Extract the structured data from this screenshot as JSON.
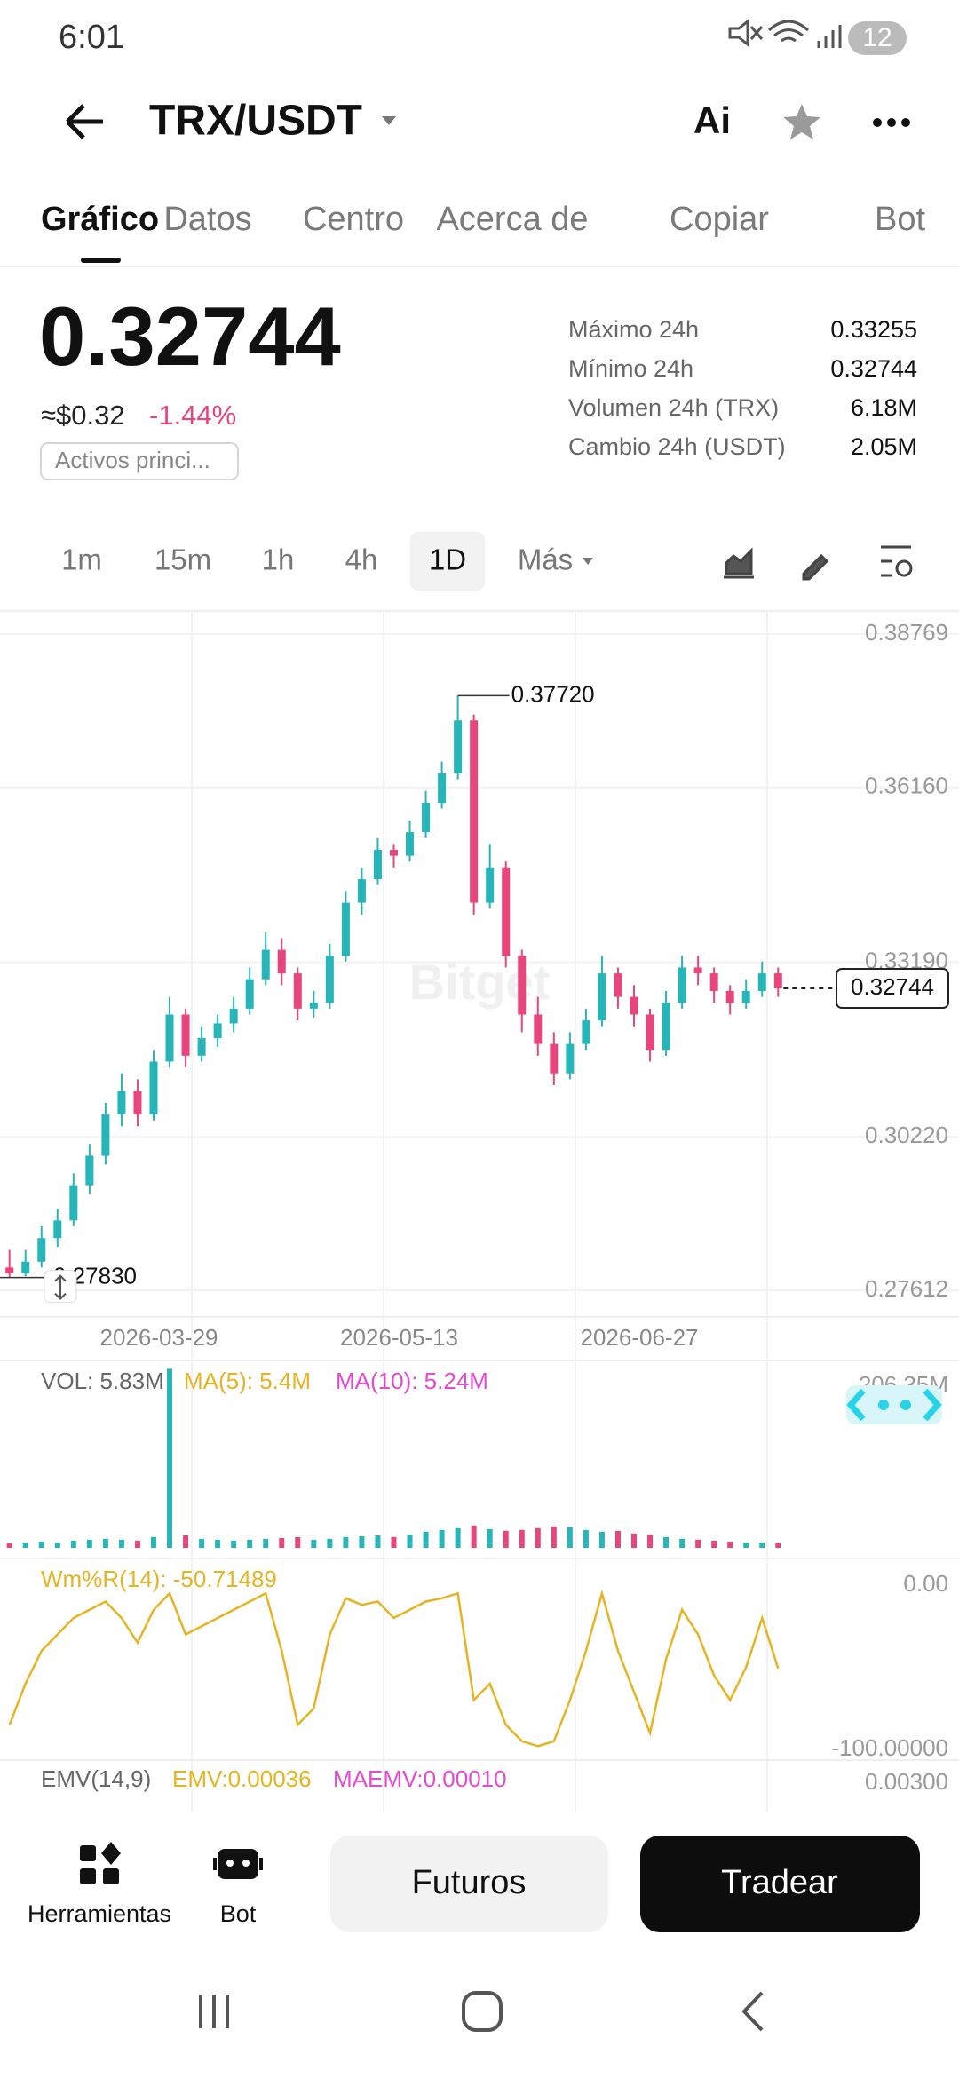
{
  "status_bar": {
    "time": "6:01",
    "battery": "12"
  },
  "header": {
    "pair": "TRX/USDT",
    "ai": "Ai"
  },
  "tabs": [
    "Gráfico",
    "Datos",
    "Centro",
    "Acerca de",
    "Copiar",
    "Bot"
  ],
  "active_tab": 0,
  "ticker": {
    "price": "0.32744",
    "usd": "≈$0.32",
    "change": "-1.44%",
    "tag": "Activos princi...",
    "stats": [
      [
        "Máximo 24h",
        "0.33255"
      ],
      [
        "Mínimo 24h",
        "0.32744"
      ],
      [
        "Volumen 24h (TRX)",
        "6.18M"
      ],
      [
        "Cambio 24h (USDT)",
        "2.05M"
      ]
    ]
  },
  "timeframes": [
    "1m",
    "15m",
    "1h",
    "4h",
    "1D",
    "Más"
  ],
  "active_timeframe": 4,
  "chart_data": {
    "type": "candlestick",
    "x": [
      "2026-03-01",
      "2026-03-04",
      "2026-03-07",
      "2026-03-10",
      "2026-03-13",
      "2026-03-16",
      "2026-03-19",
      "2026-03-22",
      "2026-03-25",
      "2026-03-28",
      "2026-03-31",
      "2026-04-03",
      "2026-04-06",
      "2026-04-09",
      "2026-04-12",
      "2026-04-15",
      "2026-04-18",
      "2026-04-21",
      "2026-04-24",
      "2026-04-27",
      "2026-04-30",
      "2026-05-03",
      "2026-05-06",
      "2026-05-09",
      "2026-05-12",
      "2026-05-15",
      "2026-05-18",
      "2026-05-21",
      "2026-05-24",
      "2026-05-27",
      "2026-05-30",
      "2026-06-02",
      "2026-06-05",
      "2026-06-08",
      "2026-06-11",
      "2026-06-14",
      "2026-06-17",
      "2026-06-20",
      "2026-06-23",
      "2026-06-26",
      "2026-06-29",
      "2026-07-02",
      "2026-07-05",
      "2026-07-08",
      "2026-07-11",
      "2026-07-14",
      "2026-07-17",
      "2026-07-20",
      "2026-07-23"
    ],
    "ohlc": [
      [
        0.28,
        0.283,
        0.2783,
        0.279
      ],
      [
        0.279,
        0.283,
        0.2785,
        0.281
      ],
      [
        0.281,
        0.287,
        0.28,
        0.285
      ],
      [
        0.285,
        0.29,
        0.2835,
        0.288
      ],
      [
        0.288,
        0.296,
        0.287,
        0.294
      ],
      [
        0.294,
        0.301,
        0.2925,
        0.299
      ],
      [
        0.299,
        0.308,
        0.2975,
        0.306
      ],
      [
        0.306,
        0.313,
        0.304,
        0.31
      ],
      [
        0.31,
        0.312,
        0.304,
        0.306
      ],
      [
        0.306,
        0.317,
        0.305,
        0.315
      ],
      [
        0.315,
        0.326,
        0.314,
        0.323
      ],
      [
        0.323,
        0.324,
        0.314,
        0.316
      ],
      [
        0.316,
        0.321,
        0.315,
        0.319
      ],
      [
        0.319,
        0.323,
        0.3175,
        0.3215
      ],
      [
        0.3215,
        0.326,
        0.32,
        0.324
      ],
      [
        0.324,
        0.331,
        0.323,
        0.329
      ],
      [
        0.329,
        0.337,
        0.328,
        0.334
      ],
      [
        0.334,
        0.336,
        0.328,
        0.33
      ],
      [
        0.33,
        0.331,
        0.322,
        0.324
      ],
      [
        0.324,
        0.327,
        0.3225,
        0.325
      ],
      [
        0.325,
        0.335,
        0.324,
        0.333
      ],
      [
        0.333,
        0.344,
        0.332,
        0.342
      ],
      [
        0.342,
        0.348,
        0.34,
        0.346
      ],
      [
        0.346,
        0.353,
        0.345,
        0.351
      ],
      [
        0.351,
        0.352,
        0.348,
        0.35
      ],
      [
        0.35,
        0.356,
        0.349,
        0.354
      ],
      [
        0.354,
        0.361,
        0.353,
        0.359
      ],
      [
        0.359,
        0.366,
        0.358,
        0.364
      ],
      [
        0.364,
        0.3772,
        0.363,
        0.373
      ],
      [
        0.373,
        0.374,
        0.34,
        0.342
      ],
      [
        0.342,
        0.352,
        0.341,
        0.348
      ],
      [
        0.348,
        0.349,
        0.331,
        0.333
      ],
      [
        0.333,
        0.334,
        0.32,
        0.323
      ],
      [
        0.323,
        0.326,
        0.316,
        0.318
      ],
      [
        0.318,
        0.32,
        0.311,
        0.313
      ],
      [
        0.313,
        0.32,
        0.312,
        0.318
      ],
      [
        0.318,
        0.324,
        0.317,
        0.322
      ],
      [
        0.322,
        0.333,
        0.321,
        0.33
      ],
      [
        0.33,
        0.331,
        0.324,
        0.326
      ],
      [
        0.326,
        0.328,
        0.321,
        0.323
      ],
      [
        0.323,
        0.324,
        0.315,
        0.317
      ],
      [
        0.317,
        0.327,
        0.316,
        0.325
      ],
      [
        0.325,
        0.333,
        0.324,
        0.331
      ],
      [
        0.331,
        0.333,
        0.328,
        0.33
      ],
      [
        0.33,
        0.331,
        0.325,
        0.327
      ],
      [
        0.327,
        0.328,
        0.323,
        0.325
      ],
      [
        0.325,
        0.329,
        0.324,
        0.327
      ],
      [
        0.327,
        0.332,
        0.326,
        0.33
      ],
      [
        0.33,
        0.331,
        0.326,
        0.32744
      ]
    ],
    "up_color": "#26b5b8",
    "down_color": "#e8457c",
    "ylim": [
      0.2716,
      0.3916
    ],
    "yticks": [
      0.27612,
      {
        "value": 0.3022,
        "label": "0.30220"
      },
      {
        "value": 0.3319,
        "label": "0.33190"
      },
      {
        "value": 0.3616,
        "label": "0.36160"
      },
      0.38769
    ],
    "xticks": [
      "2026-03-29",
      "2026-05-13",
      "2026-06-27"
    ],
    "grid": true,
    "high_label": "0.37720",
    "low_label": "0.27830",
    "last_label": "0.32744",
    "watermark": "Bitget",
    "volume": {
      "label": "VOL: 5.83M",
      "ma5": "MA(5): 5.4M",
      "ma10": "MA(10): 5.24M",
      "ma5_color": "#e6b422",
      "ma10_color": "#e64ad0",
      "values": [
        5,
        6,
        7,
        6,
        8,
        9,
        10,
        9,
        8,
        12,
        200,
        14,
        10,
        9,
        8,
        9,
        10,
        11,
        12,
        9,
        10,
        12,
        13,
        14,
        12,
        15,
        18,
        20,
        22,
        25,
        21,
        19,
        20,
        22,
        24,
        23,
        20,
        18,
        19,
        16,
        15,
        12,
        10,
        9,
        8,
        7,
        6,
        6,
        5.83
      ],
      "ylim": [
        0,
        206.35
      ],
      "yticks": [
        {
          "value": 206.35,
          "label": "206.35M"
        }
      ]
    },
    "wr": {
      "label": "Wm%R(14): -50.71489",
      "color": "#e6b422",
      "values": [
        -85,
        -60,
        -40,
        -30,
        -20,
        -15,
        -10,
        -20,
        -35,
        -15,
        -5,
        -30,
        -25,
        -20,
        -15,
        -10,
        -5,
        -40,
        -85,
        -75,
        -30,
        -8,
        -12,
        -10,
        -20,
        -15,
        -10,
        -8,
        -5,
        -70,
        -60,
        -85,
        -95,
        -98,
        -95,
        -70,
        -40,
        -5,
        -40,
        -65,
        -90,
        -45,
        -15,
        -30,
        -55,
        -70,
        -50,
        -20,
        -50.71489
      ],
      "ylim": [
        -100,
        0
      ],
      "yticks": [
        {
          "value": 0,
          "label": "0.00"
        },
        {
          "value": -100,
          "label": "-100.00000"
        }
      ]
    },
    "emv": {
      "label": "EMV(14,9)",
      "emv": "EMV:0.00036",
      "maemv": "MAEMV:0.00010",
      "yticks": [
        {
          "value": 0.003,
          "label": "0.00300"
        }
      ]
    }
  },
  "bottom_bar": {
    "tools": "Herramientas",
    "bot": "Bot",
    "futures": "Futuros",
    "trade": "Tradear"
  }
}
